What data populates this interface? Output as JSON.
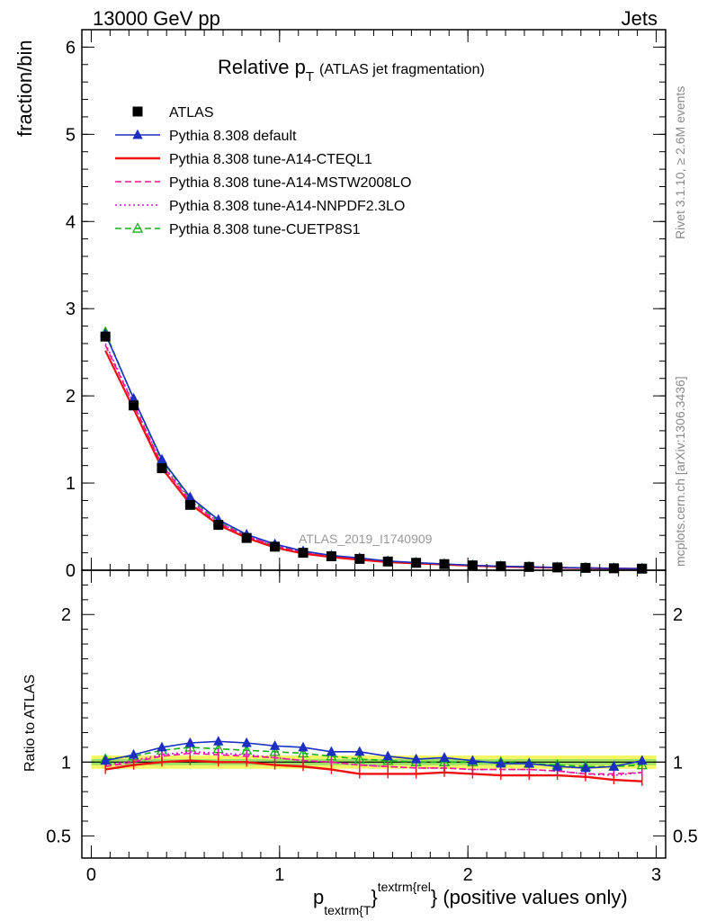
{
  "header": {
    "energy_label": "13000 GeV pp",
    "process_label": "Jets"
  },
  "title": {
    "main": "Relative p",
    "sub": "T",
    "suffix": "(ATLAS jet fragmentation)"
  },
  "side_labels": {
    "rivet": "Rivet 3.1.10, ≥ 2.6M events",
    "mcplots": "mcplots.cern.ch [arXiv:1306.3436]"
  },
  "watermark": "ATLAS_2019_I1740909",
  "axis": {
    "ylabel_top": "fraction/bin",
    "ylabel_bottom": "Ratio to ATLAS",
    "xlabel_p": "p",
    "xlabel_sub": "textrm{T",
    "xlabel_mid": "}",
    "xlabel_sup": "textrm{rel",
    "xlabel_close": "}",
    "xlabel_tail": " (positive values only)"
  },
  "chart_data": [
    {
      "type": "line",
      "panel": "main",
      "xlim": [
        -0.05,
        3.05
      ],
      "ylim": [
        0,
        6.2
      ],
      "x_ticks": [
        "0",
        "1",
        "2",
        "3"
      ],
      "y_ticks": [
        "0",
        "1",
        "2",
        "3",
        "4",
        "5",
        "6"
      ],
      "x": [
        0.075,
        0.225,
        0.375,
        0.525,
        0.675,
        0.825,
        0.975,
        1.125,
        1.275,
        1.425,
        1.575,
        1.725,
        1.875,
        2.025,
        2.175,
        2.325,
        2.475,
        2.625,
        2.775,
        2.925
      ],
      "series": [
        {
          "name": "ATLAS",
          "color": "#000000",
          "style": "marker-square",
          "values": [
            2.68,
            1.89,
            1.17,
            0.75,
            0.52,
            0.37,
            0.27,
            0.2,
            0.16,
            0.13,
            0.1,
            0.085,
            0.07,
            0.055,
            0.045,
            0.038,
            0.032,
            0.027,
            0.022,
            0.018
          ]
        },
        {
          "name": "Pythia 8.308 default",
          "color": "#1c2fc0",
          "style": "solid-triangle",
          "values": [
            2.71,
            1.97,
            1.27,
            0.84,
            0.58,
            0.41,
            0.3,
            0.22,
            0.17,
            0.14,
            0.105,
            0.087,
            0.072,
            0.056,
            0.046,
            0.039,
            0.031,
            0.026,
            0.021,
            0.018
          ]
        },
        {
          "name": "Pythia 8.308 tune-A14-CTEQL1",
          "color": "#f01010",
          "style": "solid",
          "values": [
            2.52,
            1.85,
            1.17,
            0.76,
            0.52,
            0.37,
            0.26,
            0.19,
            0.15,
            0.12,
            0.093,
            0.078,
            0.065,
            0.051,
            0.041,
            0.035,
            0.029,
            0.024,
            0.019,
            0.016
          ]
        },
        {
          "name": "Pythia 8.308 tune-A14-MSTW2008LO",
          "color": "#f01593",
          "style": "dashed",
          "values": [
            2.58,
            1.9,
            1.21,
            0.79,
            0.54,
            0.39,
            0.28,
            0.2,
            0.16,
            0.125,
            0.097,
            0.082,
            0.067,
            0.053,
            0.043,
            0.036,
            0.03,
            0.025,
            0.02,
            0.017
          ]
        },
        {
          "name": "Pythia 8.308 tune-A14-NNPDF2.3LO",
          "color": "#e010e0",
          "style": "dotted",
          "values": [
            2.6,
            1.91,
            1.22,
            0.8,
            0.55,
            0.39,
            0.28,
            0.2,
            0.16,
            0.125,
            0.097,
            0.082,
            0.067,
            0.053,
            0.043,
            0.036,
            0.03,
            0.024,
            0.02,
            0.017
          ]
        },
        {
          "name": "Pythia 8.308 tune-CUETP8S1",
          "color": "#18b018",
          "style": "dashed-open-triangle",
          "values": [
            2.73,
            1.96,
            1.26,
            0.82,
            0.56,
            0.39,
            0.28,
            0.21,
            0.165,
            0.13,
            0.1,
            0.085,
            0.068,
            0.055,
            0.045,
            0.038,
            0.031,
            0.026,
            0.021,
            0.018
          ]
        }
      ]
    },
    {
      "type": "line",
      "panel": "ratio",
      "xlim": [
        -0.05,
        3.05
      ],
      "ylim": [
        0.35,
        2.3
      ],
      "x_ticks": [
        "0",
        "1",
        "2",
        "3"
      ],
      "y_ticks": [
        "0.5",
        "1",
        "2"
      ],
      "x": [
        0.075,
        0.225,
        0.375,
        0.525,
        0.675,
        0.825,
        0.975,
        1.125,
        1.275,
        1.425,
        1.575,
        1.725,
        1.875,
        2.025,
        2.175,
        2.325,
        2.475,
        2.625,
        2.775,
        2.925
      ],
      "band": {
        "inner_color": "#99e066",
        "outer_color": "#f5f566",
        "inner": 0.02,
        "outer": 0.045
      },
      "series": [
        {
          "name": "Pythia 8.308 default",
          "values": [
            1.01,
            1.05,
            1.1,
            1.13,
            1.14,
            1.13,
            1.11,
            1.1,
            1.07,
            1.07,
            1.04,
            1.02,
            1.03,
            1.01,
            0.99,
            0.99,
            0.97,
            0.96,
            0.97,
            1.01
          ]
        },
        {
          "name": "Pythia 8.308 tune-A14-CTEQL1",
          "values": [
            0.95,
            0.98,
            1.0,
            1.01,
            1.0,
            1.0,
            0.98,
            0.97,
            0.95,
            0.92,
            0.92,
            0.92,
            0.93,
            0.92,
            0.91,
            0.91,
            0.91,
            0.9,
            0.88,
            0.87
          ]
        },
        {
          "name": "Pythia 8.308 tune-A14-MSTW2008LO",
          "values": [
            0.97,
            1.0,
            1.04,
            1.06,
            1.05,
            1.04,
            1.03,
            1.01,
            1.0,
            0.98,
            0.97,
            0.96,
            0.96,
            0.95,
            0.95,
            0.95,
            0.94,
            0.92,
            0.92,
            0.93
          ]
        },
        {
          "name": "Pythia 8.308 tune-A14-NNPDF2.3LO",
          "values": [
            0.98,
            1.01,
            1.05,
            1.07,
            1.06,
            1.05,
            1.03,
            1.01,
            1.0,
            0.98,
            0.97,
            0.96,
            0.96,
            0.95,
            0.95,
            0.95,
            0.94,
            0.92,
            0.91,
            0.93
          ]
        },
        {
          "name": "Pythia 8.308 tune-CUETP8S1",
          "values": [
            1.02,
            1.04,
            1.08,
            1.1,
            1.09,
            1.08,
            1.07,
            1.06,
            1.04,
            1.02,
            1.01,
            1.0,
            1.0,
            1.0,
            1.0,
            0.99,
            0.98,
            0.97,
            0.97,
            0.98
          ]
        }
      ]
    }
  ]
}
